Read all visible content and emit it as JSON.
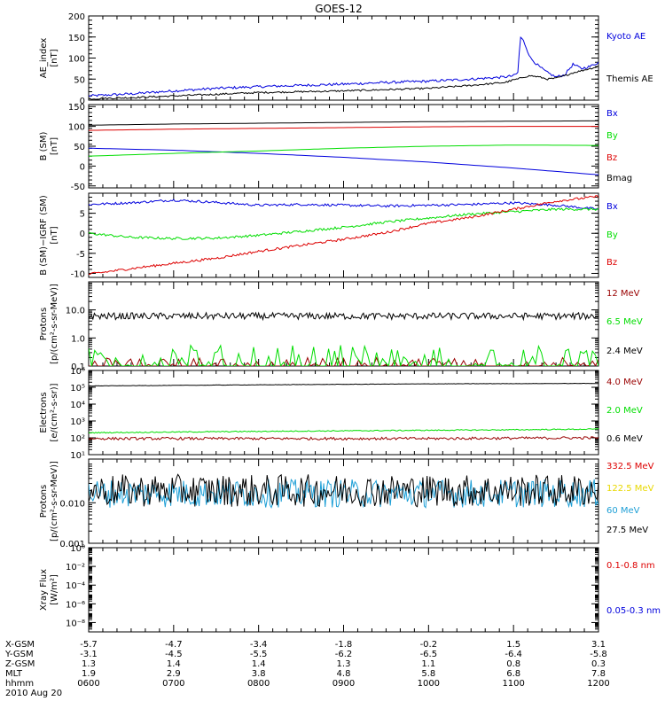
{
  "title": "GOES-12",
  "colors": {
    "black": "#000000",
    "blue": "#0000dd",
    "red": "#dd0000",
    "green": "#00dd00",
    "darkred": "#990000",
    "cyan": "#1e9fd6",
    "yellow": "#e8d800"
  },
  "chart_data": [
    {
      "type": "line",
      "id": "ae",
      "ylabel": [
        "AE_index",
        "[nT]"
      ],
      "yscale": "linear",
      "ylim": [
        0,
        200
      ],
      "yticks": [
        0,
        50,
        100,
        150,
        200
      ],
      "yticklabels": [
        "0",
        "50",
        "100",
        "150",
        "200"
      ],
      "x_hours": [
        6,
        6.5,
        7,
        7.5,
        8,
        8.5,
        9,
        9.5,
        10,
        10.5,
        10.9,
        11.0,
        11.05,
        11.08,
        11.12,
        11.2,
        11.3,
        11.4,
        11.5,
        11.6,
        11.7,
        11.8,
        11.9,
        12
      ],
      "series": [
        {
          "name": "Kyoto AE",
          "color": "blue",
          "noise": 3,
          "values": [
            10,
            15,
            22,
            28,
            32,
            35,
            38,
            42,
            45,
            50,
            55,
            58,
            65,
            150,
            140,
            100,
            80,
            65,
            55,
            60,
            85,
            75,
            80,
            90
          ]
        },
        {
          "name": "Themis AE",
          "color": "black",
          "noise": 2,
          "values": [
            3,
            6,
            10,
            14,
            18,
            20,
            22,
            25,
            28,
            35,
            42,
            48,
            50,
            52,
            55,
            58,
            55,
            50,
            52,
            58,
            65,
            70,
            75,
            80
          ]
        }
      ]
    },
    {
      "type": "line",
      "id": "bsm",
      "ylabel": [
        "B (SM)",
        "[nT]"
      ],
      "yscale": "linear",
      "ylim": [
        -55,
        155
      ],
      "yticks": [
        -50,
        0,
        50,
        100,
        150
      ],
      "yticklabels": [
        "-50",
        "0",
        "50",
        "100",
        "150"
      ],
      "x_hours": [
        6,
        7,
        8,
        9,
        10,
        11,
        12
      ],
      "series": [
        {
          "name": "Bx",
          "color": "blue",
          "noise": 0,
          "values": [
            45,
            40,
            32,
            22,
            10,
            -5,
            -22
          ]
        },
        {
          "name": "By",
          "color": "green",
          "noise": 0,
          "values": [
            25,
            32,
            38,
            45,
            50,
            53,
            52
          ]
        },
        {
          "name": "Bz",
          "color": "red",
          "noise": 0,
          "values": [
            90,
            93,
            95,
            97,
            99,
            100,
            100
          ]
        },
        {
          "name": "Bmag",
          "color": "black",
          "noise": 0,
          "values": [
            103,
            106,
            108,
            110,
            112,
            113,
            114
          ]
        }
      ]
    },
    {
      "type": "line",
      "id": "bdiff",
      "ylabel": [
        "B (SM)−IGRF (SM)",
        "[nT]"
      ],
      "yscale": "linear",
      "ylim": [
        -11,
        10
      ],
      "yticks": [
        -10,
        -5,
        0,
        5
      ],
      "yticklabels": [
        "-10",
        "-5",
        "0",
        "5"
      ],
      "x_hours": [
        6,
        6.5,
        7,
        7.5,
        8,
        8.5,
        9,
        9.5,
        10,
        10.5,
        11,
        11.5,
        12
      ],
      "series": [
        {
          "name": "Bx",
          "color": "blue",
          "noise": 0.3,
          "values": [
            7.2,
            7.6,
            8.3,
            7.7,
            7.0,
            7.2,
            7.0,
            6.8,
            7.0,
            7.2,
            7.6,
            7.0,
            6.0
          ]
        },
        {
          "name": "By",
          "color": "green",
          "noise": 0.3,
          "values": [
            0,
            -1,
            -1.3,
            -1.2,
            -0.5,
            0.5,
            1.5,
            2.8,
            3.8,
            4.8,
            5.4,
            6.0,
            6.0
          ]
        },
        {
          "name": "Bz",
          "color": "red",
          "noise": 0.3,
          "values": [
            -10.2,
            -8.8,
            -7.5,
            -6.2,
            -4.5,
            -3.0,
            -1.5,
            0.2,
            2.5,
            4.0,
            6.0,
            8.0,
            9.2
          ]
        }
      ]
    },
    {
      "type": "line",
      "id": "protons_low",
      "ylabel": [
        "Protons",
        "[p/(cm²-s-sr-MeV)]"
      ],
      "yscale": "log",
      "ylim": [
        0.1,
        100
      ],
      "yticks": [
        0.1,
        1,
        10
      ],
      "yticklabels": [
        "0.1",
        "1.0",
        "10.0"
      ],
      "x_hours": [
        6,
        12
      ],
      "series": [
        {
          "name": "12 MeV",
          "color": "darkred",
          "noise": 0,
          "values": [
            0.1,
            0.1
          ],
          "spiky": true,
          "peak": 0.2
        },
        {
          "name": "6.5 MeV",
          "color": "green",
          "noise": 0,
          "values": [
            0.1,
            0.1
          ],
          "spiky": true,
          "peak": 0.55
        },
        {
          "name": "2.4 MeV",
          "color": "black",
          "noise": 0.12,
          "values": [
            6,
            6
          ]
        }
      ]
    },
    {
      "type": "line",
      "id": "electrons",
      "ylabel": [
        "Electrons",
        "[e/(cm²-s-sr)]"
      ],
      "yscale": "log",
      "ylim": [
        10,
        1000000
      ],
      "yticks": [
        10,
        100,
        1000,
        10000,
        100000,
        1000000
      ],
      "yticklabels": [
        "10¹",
        "10²",
        "10³",
        "10⁴",
        "10⁵",
        "10⁶"
      ],
      "x_hours": [
        6,
        7,
        8,
        9,
        10,
        11,
        12
      ],
      "series": [
        {
          "name": "4.0 MeV",
          "color": "darkred",
          "noise": 0.08,
          "values": [
            90,
            90,
            90,
            90,
            90,
            95,
            100
          ]
        },
        {
          "name": "2.0 MeV",
          "color": "green",
          "noise": 0.03,
          "values": [
            200,
            220,
            240,
            260,
            280,
            300,
            330
          ]
        },
        {
          "name": "0.6 MeV",
          "color": "black",
          "noise": 0.01,
          "values": [
            120000,
            130000,
            140000,
            150000,
            160000,
            165000,
            170000
          ]
        }
      ]
    },
    {
      "type": "line",
      "id": "protons_high",
      "ylabel": [
        "Protons",
        "[p/(cm²-s-sr-MeV)]"
      ],
      "yscale": "log",
      "ylim": [
        0.001,
        0.12
      ],
      "yticks": [
        0.001,
        0.01
      ],
      "yticklabels": [
        "0.001",
        "0.010"
      ],
      "x_hours": [
        6,
        12
      ],
      "series": [
        {
          "name": "332.5 MeV",
          "color": "red",
          "noise": 0,
          "values": [],
          "hidden": true
        },
        {
          "name": "122.5 MeV",
          "color": "yellow",
          "noise": 0,
          "values": [],
          "hidden": true
        },
        {
          "name": "60 MeV",
          "color": "cyan",
          "noise": 0.35,
          "values": [
            0.017,
            0.017
          ]
        },
        {
          "name": "27.5 MeV",
          "color": "black",
          "noise": 0.4,
          "values": [
            0.02,
            0.02
          ]
        }
      ]
    },
    {
      "type": "line",
      "id": "xray",
      "ylabel": [
        "Xray Flux",
        "[W/m²]"
      ],
      "yscale": "log",
      "ylim": [
        1e-09,
        1
      ],
      "yticks": [
        1e-08,
        1e-06,
        0.0001,
        0.01,
        1
      ],
      "yticklabels": [
        "10⁻⁸",
        "10⁻⁶",
        "10⁻⁴",
        "10⁻²",
        "10⁰"
      ],
      "x_hours": [
        6,
        12
      ],
      "series": [
        {
          "name": "0.1-0.8 nm",
          "color": "red",
          "noise": 0,
          "values": [],
          "hidden": true
        },
        {
          "name": "0.05-0.3 nm",
          "color": "blue",
          "noise": 0,
          "values": [],
          "hidden": true
        }
      ]
    }
  ],
  "x_axis": {
    "xlim": [
      6,
      12
    ],
    "ticks_hours": [
      6,
      7,
      8,
      9,
      10,
      11,
      12
    ],
    "rows": [
      {
        "label": "X-GSM",
        "values": [
          "-5.7",
          "-4.7",
          "-3.4",
          "-1.8",
          "-0.2",
          "1.5",
          "3.1"
        ]
      },
      {
        "label": "Y-GSM",
        "values": [
          "-3.1",
          "-4.5",
          "-5.5",
          "-6.2",
          "-6.5",
          "-6.4",
          "-5.8"
        ]
      },
      {
        "label": "Z-GSM",
        "values": [
          "1.3",
          "1.4",
          "1.4",
          "1.3",
          "1.1",
          "0.8",
          "0.3"
        ]
      },
      {
        "label": "MLT",
        "values": [
          "1.9",
          "2.9",
          "3.8",
          "4.8",
          "5.8",
          "6.8",
          "7.8"
        ]
      },
      {
        "label": "hhmm",
        "values": [
          "0600",
          "0700",
          "0800",
          "0900",
          "1000",
          "1100",
          "1200"
        ]
      }
    ],
    "date": "2010 Aug 20"
  }
}
